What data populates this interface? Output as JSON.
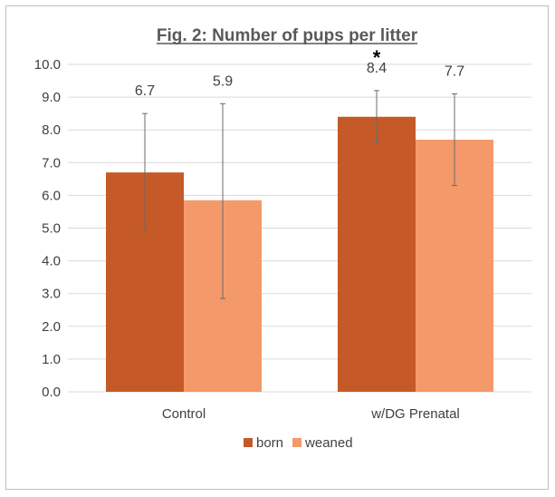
{
  "chart_data": {
    "type": "bar",
    "title": "Fig. 2: Number of pups per litter",
    "xlabel": "",
    "ylabel": "",
    "categories": [
      "Control",
      "w/DG Prenatal"
    ],
    "series": [
      {
        "name": "born",
        "color": "#c55a28",
        "values": [
          6.7,
          8.4
        ],
        "value_labels": [
          "6.7",
          "8.4"
        ],
        "error_low": [
          4.9,
          7.6
        ],
        "error_high": [
          8.5,
          9.2
        ]
      },
      {
        "name": "weaned",
        "color": "#f4996a",
        "values": [
          5.85,
          7.7
        ],
        "value_labels": [
          "5.9",
          "7.7"
        ],
        "error_low": [
          2.85,
          6.3
        ],
        "error_high": [
          8.8,
          9.1
        ]
      }
    ],
    "ylim": [
      0,
      10
    ],
    "yticks": [
      "0.0",
      "1.0",
      "2.0",
      "3.0",
      "4.0",
      "5.0",
      "6.0",
      "7.0",
      "8.0",
      "9.0",
      "10.0"
    ],
    "grid": true,
    "legend_position": "bottom",
    "annotations": [
      {
        "text": "*",
        "category": "w/DG Prenatal",
        "series": "born"
      }
    ]
  }
}
